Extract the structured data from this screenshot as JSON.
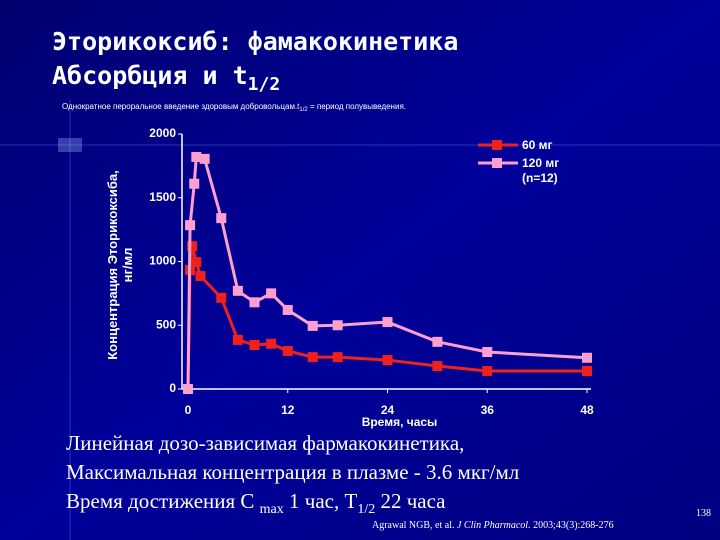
{
  "slide": {
    "title_line1": "Эторикоксиб: фамакокинетика",
    "title_line2": [
      "Абсорбция и t",
      "1/2"
    ],
    "subtitle": [
      "Однократное пероральное введение  здоровым добровольцам.t",
      "1/2",
      " = период полувыведения."
    ],
    "notes": [
      [
        "Линейная дозо-зависимая фармакокинетика,"
      ],
      [
        "Максимальная концентрация в плазме  -  3.6 мкг/мл"
      ],
      [
        "Время достижения С ",
        "max",
        " 1 час,    Т",
        "1/2",
        " 22 часа"
      ]
    ],
    "citation": [
      "Agrawal  NGB,  et  al. ",
      "J  Clin  Pharmacol.",
      "  2003;43(3):268-276"
    ],
    "page_number": "138"
  },
  "chart_data": {
    "type": "line",
    "x_label": "Время, часы",
    "y_label": "Концентрация Эторикоксиба, нг/мл",
    "xlim": [
      0,
      48
    ],
    "xticks": [
      0,
      12,
      24,
      36,
      48
    ],
    "ylim": [
      0,
      2000
    ],
    "yticks": [
      0,
      500,
      1000,
      1500,
      2000
    ],
    "grid": false,
    "legend": "upper right",
    "series": [
      {
        "name": "60 мг",
        "color": "#f0201c",
        "x": [
          0,
          0.25,
          0.5,
          1,
          1.5,
          4,
          6,
          8,
          10,
          12,
          15,
          18,
          24,
          30,
          36,
          48
        ],
        "values": [
          0,
          933,
          1120,
          995,
          886,
          715,
          385,
          345,
          355,
          298,
          250,
          250,
          227,
          180,
          141,
          141
        ]
      },
      {
        "name": "120 мг (n=12)",
        "color": "#ff9fd0",
        "x": [
          0,
          0.25,
          0.75,
          1,
          2,
          4,
          6,
          8,
          10,
          12,
          15,
          18,
          24,
          30,
          36,
          48
        ],
        "values": [
          0,
          1285,
          1610,
          1820,
          1805,
          1340,
          770,
          680,
          750,
          620,
          495,
          500,
          525,
          370,
          290,
          245
        ]
      }
    ]
  }
}
